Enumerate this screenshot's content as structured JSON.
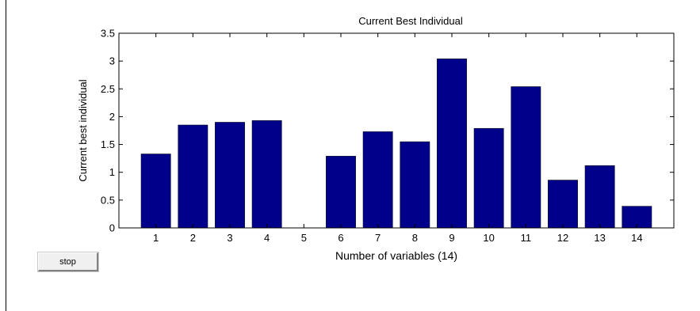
{
  "controls": {
    "stop_label": "stop"
  },
  "colors": {
    "bar": "#00008B",
    "axes": "#000000",
    "background": "#ffffff"
  },
  "chart_data": {
    "type": "bar",
    "title": "Current Best Individual",
    "xlabel": "Number of variables (14)",
    "ylabel": "Current best individual",
    "categories": [
      "1",
      "2",
      "3",
      "4",
      "5",
      "6",
      "7",
      "8",
      "9",
      "10",
      "11",
      "12",
      "13",
      "14"
    ],
    "values": [
      1.33,
      1.85,
      1.9,
      1.93,
      0,
      1.29,
      1.73,
      1.55,
      3.04,
      1.79,
      2.54,
      0.86,
      1.12,
      0.39
    ],
    "ylim": [
      0,
      3.5
    ],
    "yticks": [
      "0",
      "0.5",
      "1",
      "1.5",
      "2",
      "2.5",
      "3",
      "3.5"
    ],
    "grid": false,
    "legend": "none"
  }
}
